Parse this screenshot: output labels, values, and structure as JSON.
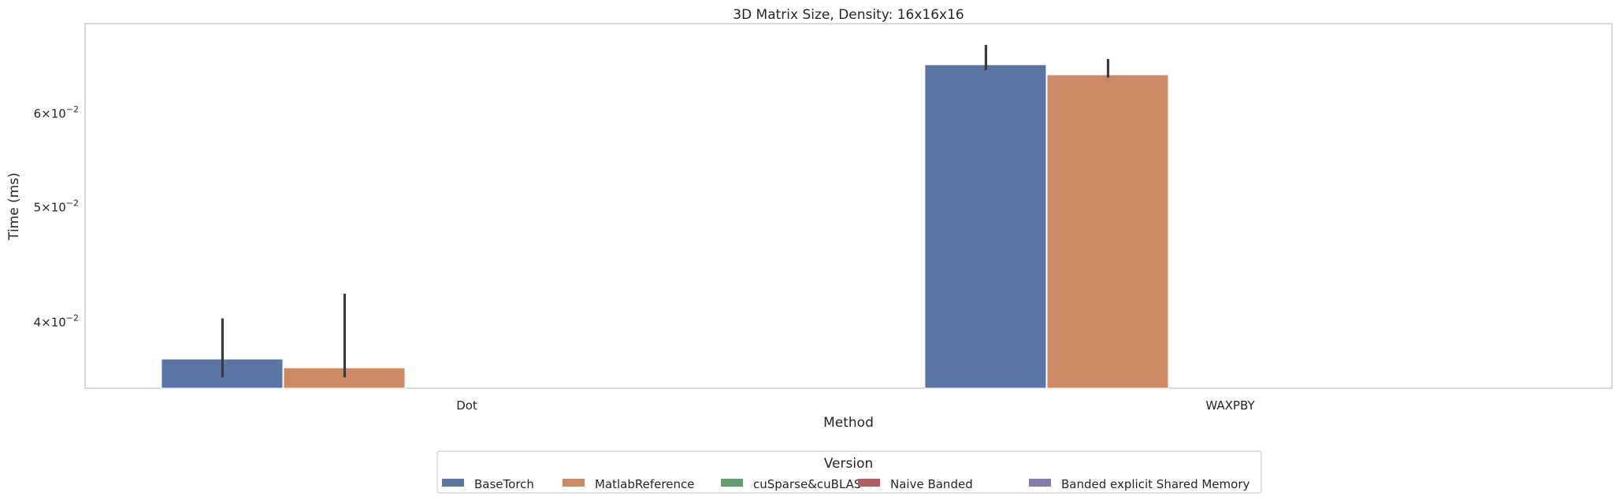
{
  "chart_data": {
    "type": "bar",
    "title": "3D Matrix Size, Density: 16x16x16",
    "xlabel": "Method",
    "ylabel": "Time (ms)",
    "yscale": "log",
    "ylim": [
      0.0352,
      0.0715
    ],
    "yticks": [
      {
        "value": 0.04,
        "mantissa": "4",
        "exponent": "−2"
      },
      {
        "value": 0.05,
        "mantissa": "5",
        "exponent": "−2"
      },
      {
        "value": 0.06,
        "mantissa": "6",
        "exponent": "−2"
      }
    ],
    "grid": false,
    "categories": [
      "Dot",
      "WAXPBY"
    ],
    "legend": {
      "title": "Version",
      "placement": "bottom-center",
      "columns": 5
    },
    "series": [
      {
        "name": "BaseTorch",
        "color": "#5875a4",
        "values": [
          0.03725,
          0.06601
        ],
        "error": [
          [
            0.03595,
            0.04031
          ],
          [
            0.06532,
            0.0686
          ]
        ]
      },
      {
        "name": "MatlabReference",
        "color": "#cc8963",
        "values": [
          0.03662,
          0.06473
        ],
        "error": [
          [
            0.03595,
            0.0423
          ],
          [
            0.06437,
            0.06675
          ]
        ]
      },
      {
        "name": "cuSparse&cuBLAS",
        "color": "#5f9e6e",
        "values": [
          null,
          null
        ],
        "error": [
          null,
          null
        ]
      },
      {
        "name": "Naive Banded",
        "color": "#b55d60",
        "values": [
          null,
          null
        ],
        "error": [
          null,
          null
        ]
      },
      {
        "name": "Banded explicit Shared Memory",
        "color": "#857aab",
        "values": [
          null,
          null
        ],
        "error": [
          null,
          null
        ]
      }
    ]
  }
}
